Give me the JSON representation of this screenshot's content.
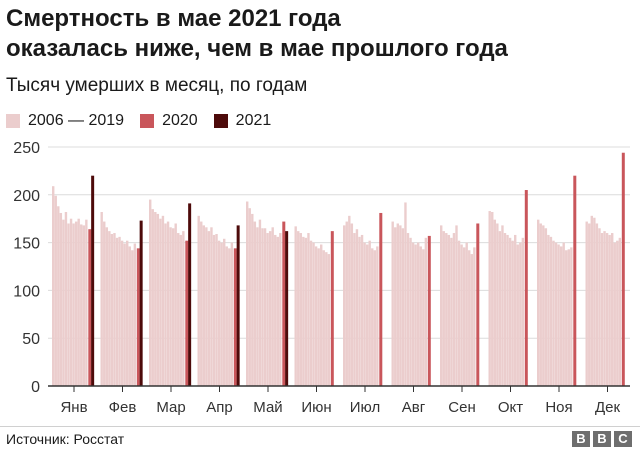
{
  "title_line1": "Смертность в мае 2021 года",
  "title_line2": "оказалась ниже, чем в мае прошлого года",
  "subtitle": "Тысяч умерших в месяц, по годам",
  "legend": [
    {
      "label": "2006 — 2019",
      "color": "#ebcdcd"
    },
    {
      "label": "2020",
      "color": "#c9565b"
    },
    {
      "label": "2021",
      "color": "#4d0a0a"
    }
  ],
  "source": "Источник: Росстат",
  "logo": [
    "B",
    "B",
    "C"
  ],
  "colors": {
    "historic": "#ebcdcd",
    "y2020": "#c9565b",
    "y2021": "#4d0a0a",
    "grid": "#dcdcdc",
    "axis": "#333333"
  },
  "chart_data": {
    "type": "bar",
    "title": "Смертность в мае 2021 года оказалась ниже, чем в мае прошлого года",
    "subtitle": "Тысяч умерших в месяц, по годам",
    "ylim": [
      0,
      250
    ],
    "yticks": [
      0,
      50,
      100,
      150,
      200,
      250
    ],
    "grid": true,
    "legend_position": "top-left",
    "categories": [
      "Янв",
      "Фев",
      "Мар",
      "Апр",
      "Май",
      "Июн",
      "Июл",
      "Авг",
      "Сен",
      "Окт",
      "Ноя",
      "Дек"
    ],
    "series": [
      {
        "name": "2006 — 2019",
        "values": [
          [
            209,
            199,
            188,
            181,
            174,
            182,
            170,
            175,
            170,
            172,
            175,
            169,
            168,
            174
          ],
          [
            182,
            172,
            166,
            162,
            159,
            160,
            155,
            156,
            152,
            149,
            152,
            146,
            142,
            149
          ],
          [
            195,
            185,
            182,
            180,
            175,
            178,
            170,
            172,
            166,
            165,
            170,
            160,
            158,
            162
          ],
          [
            178,
            172,
            168,
            166,
            162,
            166,
            158,
            159,
            152,
            150,
            154,
            146,
            144,
            150
          ],
          [
            193,
            186,
            180,
            172,
            166,
            174,
            165,
            165,
            160,
            162,
            166,
            158,
            156,
            160
          ],
          [
            167,
            162,
            160,
            156,
            155,
            160,
            152,
            150,
            146,
            144,
            148,
            142,
            140,
            138
          ],
          [
            168,
            172,
            178,
            170,
            160,
            164,
            156,
            158,
            150,
            148,
            152,
            144,
            142,
            146
          ],
          [
            172,
            166,
            170,
            168,
            165,
            192,
            160,
            155,
            150,
            148,
            150,
            146,
            143,
            155
          ],
          [
            168,
            162,
            160,
            158,
            155,
            160,
            168,
            152,
            148,
            145,
            150,
            142,
            138,
            145
          ],
          [
            183,
            182,
            174,
            170,
            162,
            168,
            160,
            158,
            155,
            152,
            158,
            148,
            150,
            155
          ],
          [
            174,
            170,
            168,
            165,
            158,
            156,
            152,
            150,
            148,
            146,
            150,
            142,
            143,
            145
          ],
          [
            172,
            170,
            178,
            176,
            170,
            165,
            160,
            162,
            160,
            158,
            160,
            150,
            152,
            155
          ]
        ]
      },
      {
        "name": "2020",
        "values": [
          164,
          144,
          152,
          144,
          172,
          162,
          181,
          157,
          170,
          205,
          220,
          244
        ]
      },
      {
        "name": "2021",
        "values": [
          220,
          173,
          191,
          168,
          162,
          null,
          null,
          null,
          null,
          null,
          null,
          null
        ]
      }
    ]
  }
}
